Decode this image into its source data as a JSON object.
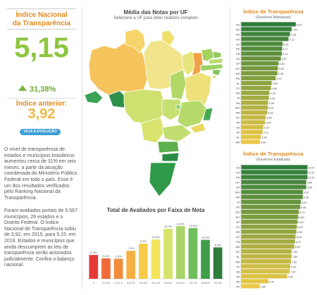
{
  "left": {
    "title_line1": "Índice Nacional",
    "title_line2": "da Transparência",
    "score": "5,15",
    "delta": "31,38%",
    "prev_label": "Índice anterior:",
    "prev_value": "3,92",
    "button": "VEJA A EVOLUÇÃO",
    "para1": "O nível de transparência de estados e municípios brasileiros aumentou cerca de 31% em seis meses, a partir da atuação coordenada do Ministério Público Federal em todo o país. Esse é um dos resultados verificados pelo Ranking Nacional da Transparência.",
    "para2": "Foram avaliados portais de 5.567 municípios, 26 estados e o Distrito Federal. O Índice Nacional de Transparência subiu de 3,92, em 2015, para 5,15, em 2016. Estados e municípios que ainda descumprem as leis de transparência serão acionados judicialmente. Confira o balanço nacional."
  },
  "map": {
    "title": "Média das Notas por UF",
    "subtitle": "Selecione a UF para obter relatório completo"
  },
  "chart_data": [
    {
      "type": "bar",
      "title": "Total de Avaliados por Faixa de Nota",
      "categories": [
        "0",
        "0,1-0,9",
        "1,0-1,9",
        "2,0-2,9",
        "3,0-3,9",
        "4,0-4,9",
        "5,0-5,9",
        "6,0-6,9",
        "7,0-7,9",
        "8,0-8,9",
        "9,0-10"
      ],
      "values": [
        6.3,
        5.4,
        5.3,
        7.4,
        9.3,
        10.4,
        13.2,
        13.9,
        13.4,
        10.3,
        8.3
      ],
      "labels": [
        "6,3%",
        "5,4%",
        "5,3%",
        "7,4%",
        "9,3%",
        "10,4%",
        "13,2%",
        "13,9%",
        "13,4%",
        "10,3%",
        "8,3%"
      ],
      "colors": [
        "#e53935",
        "#ef6c3a",
        "#f28c3a",
        "#f6b042",
        "#f7cc4a",
        "#f2e35c",
        "#d7e36a",
        "#a9d46a",
        "#6fbf5c",
        "#3f9f48",
        "#2e7d3a"
      ],
      "ylim": [
        0,
        16
      ]
    },
    {
      "type": "bar",
      "title": "Índice de Transparência",
      "subtitle": "(Governos Municipais)",
      "categories": [
        "SC",
        "RS",
        "RS",
        "RS",
        "RJ",
        "PE",
        "PB",
        "CE",
        "SP",
        "GO",
        "MS",
        "RN",
        "AL",
        "TO",
        "RR",
        "PI",
        "BA",
        "MG",
        "AM",
        "AC",
        "PA",
        "SE",
        "AP",
        "AL",
        "AM"
      ],
      "values": [
        8.23,
        7.6,
        7.36,
        7.13,
        6.24,
        6.17,
        6.13,
        5.97,
        5.64,
        5.52,
        5.46,
        5.2,
        4.59,
        4.48,
        4.25,
        4.16,
        4.06,
        4.02,
        3.92,
        3.69,
        3.6,
        3.33,
        3.21,
        2.95,
        2.84
      ],
      "labels": [
        "8,23",
        "7,60",
        "7,36",
        "7,13",
        "6,24",
        "6,17",
        "6,13",
        "5,97",
        "5,64",
        "5,52",
        "5,46",
        "5,20",
        "4,59",
        "4,48",
        "4,25",
        "4,16",
        "4,06",
        "4,02",
        "3,92",
        "3,69",
        "3,60",
        "3,33",
        "3,21",
        "2,95",
        "2,84"
      ],
      "xlim": [
        0,
        10
      ]
    },
    {
      "type": "bar",
      "title": "Índice de Transparência",
      "subtitle": "(Governos Estaduais)",
      "categories": [
        "CE",
        "ES",
        "PR",
        "GO",
        "SP",
        "MG",
        "RN",
        "PI",
        "PE",
        "RO",
        "MT",
        "AP",
        "SC",
        "RR",
        "DF",
        "PB",
        "AM",
        "AC",
        "AL",
        "MA",
        "TO",
        "SE",
        "PA",
        "BA",
        "RJ"
      ],
      "values": [
        10,
        10,
        10,
        9.8,
        9.8,
        9.3,
        9.3,
        9,
        8.9,
        8.7,
        8.6,
        8.5,
        8.4,
        8.3,
        8.2,
        8.1,
        8,
        7.6,
        7.6,
        7.5,
        7.4,
        7.3,
        6.9,
        4.1,
        2.8
      ],
      "labels": [
        "10,00",
        "10,00",
        "10,00",
        "9,80",
        "9,80",
        "9,30",
        "9,30",
        "9,00",
        "8,90",
        "8,70",
        "8,60",
        "8,50",
        "8,40",
        "8,30",
        "8,20",
        "8,10",
        "8,00",
        "7,60",
        "7,60",
        "7,50",
        "7,40",
        "7,30",
        "6,90",
        "4,10",
        "2,80"
      ],
      "xlim": [
        0,
        10
      ]
    }
  ]
}
